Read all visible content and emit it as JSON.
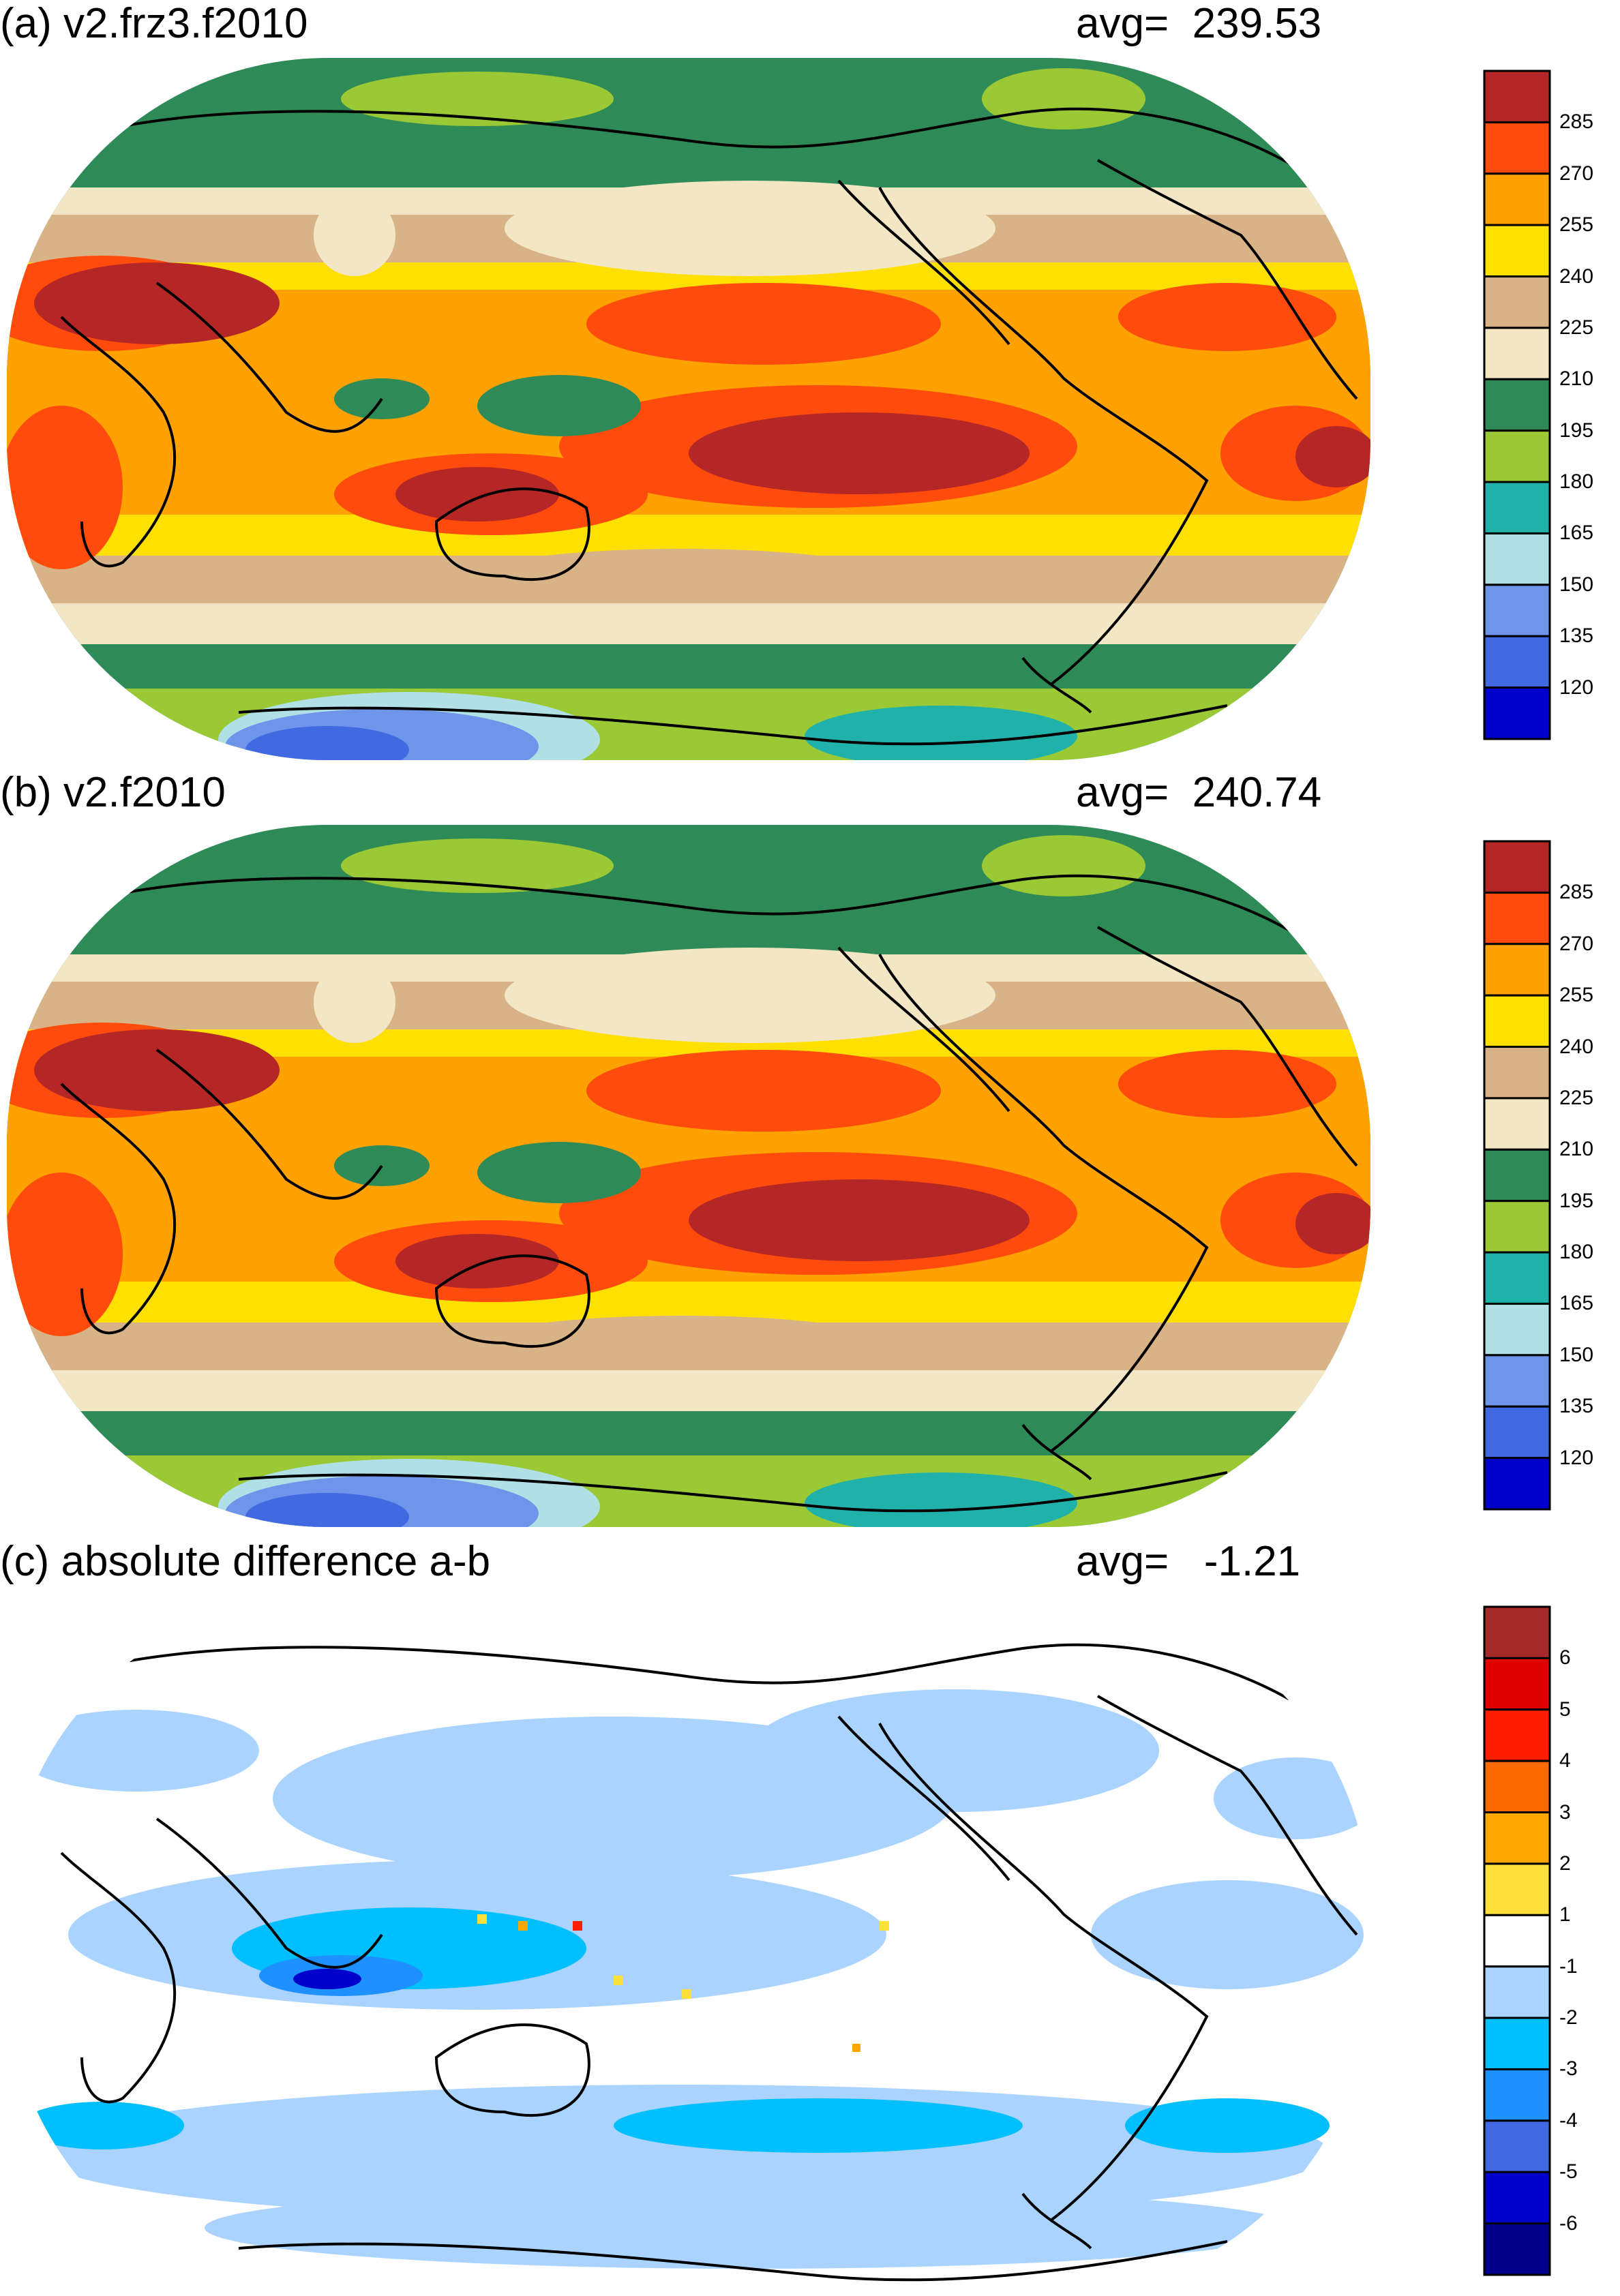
{
  "panels": [
    {
      "id": "a",
      "title": "(a) v2.frz3.f2010",
      "avg_text": "avg=  239.53",
      "colorbar": {
        "labels": [
          "285",
          "270",
          "255",
          "240",
          "225",
          "210",
          "195",
          "180",
          "165",
          "150",
          "135",
          "120"
        ],
        "colors": [
          "#b52627",
          "#ff4b0c",
          "#ffa100",
          "#ffe000",
          "#d9b388",
          "#f3e6c4",
          "#2e8b57",
          "#9ac935",
          "#20b2aa",
          "#b0e0e6",
          "#6f95ea",
          "#4169e1",
          "#0000cd"
        ]
      }
    },
    {
      "id": "b",
      "title": "(b) v2.f2010",
      "avg_text": "avg=  240.74",
      "colorbar": {
        "labels": [
          "285",
          "270",
          "255",
          "240",
          "225",
          "210",
          "195",
          "180",
          "165",
          "150",
          "135",
          "120"
        ],
        "colors": [
          "#b52627",
          "#ff4b0c",
          "#ffa100",
          "#ffe000",
          "#d9b388",
          "#f3e6c4",
          "#2e8b57",
          "#9ac935",
          "#20b2aa",
          "#b0e0e6",
          "#6f95ea",
          "#4169e1",
          "#0000cd"
        ]
      }
    },
    {
      "id": "c",
      "title": "(c) absolute difference a-b",
      "avg_text": "avg=   -1.21",
      "colorbar": {
        "labels": [
          "6",
          "5",
          "4",
          "3",
          "2",
          "1",
          "-1",
          "-2",
          "-3",
          "-4",
          "-5",
          "-6"
        ],
        "colors": [
          "#a52a2a",
          "#e00000",
          "#ff1e00",
          "#ff6a00",
          "#ffa600",
          "#ffe03a",
          "#ffffff",
          "#aad4ff",
          "#00bfff",
          "#1e90ff",
          "#4169e1",
          "#0000cd",
          "#00008b"
        ]
      }
    }
  ]
}
